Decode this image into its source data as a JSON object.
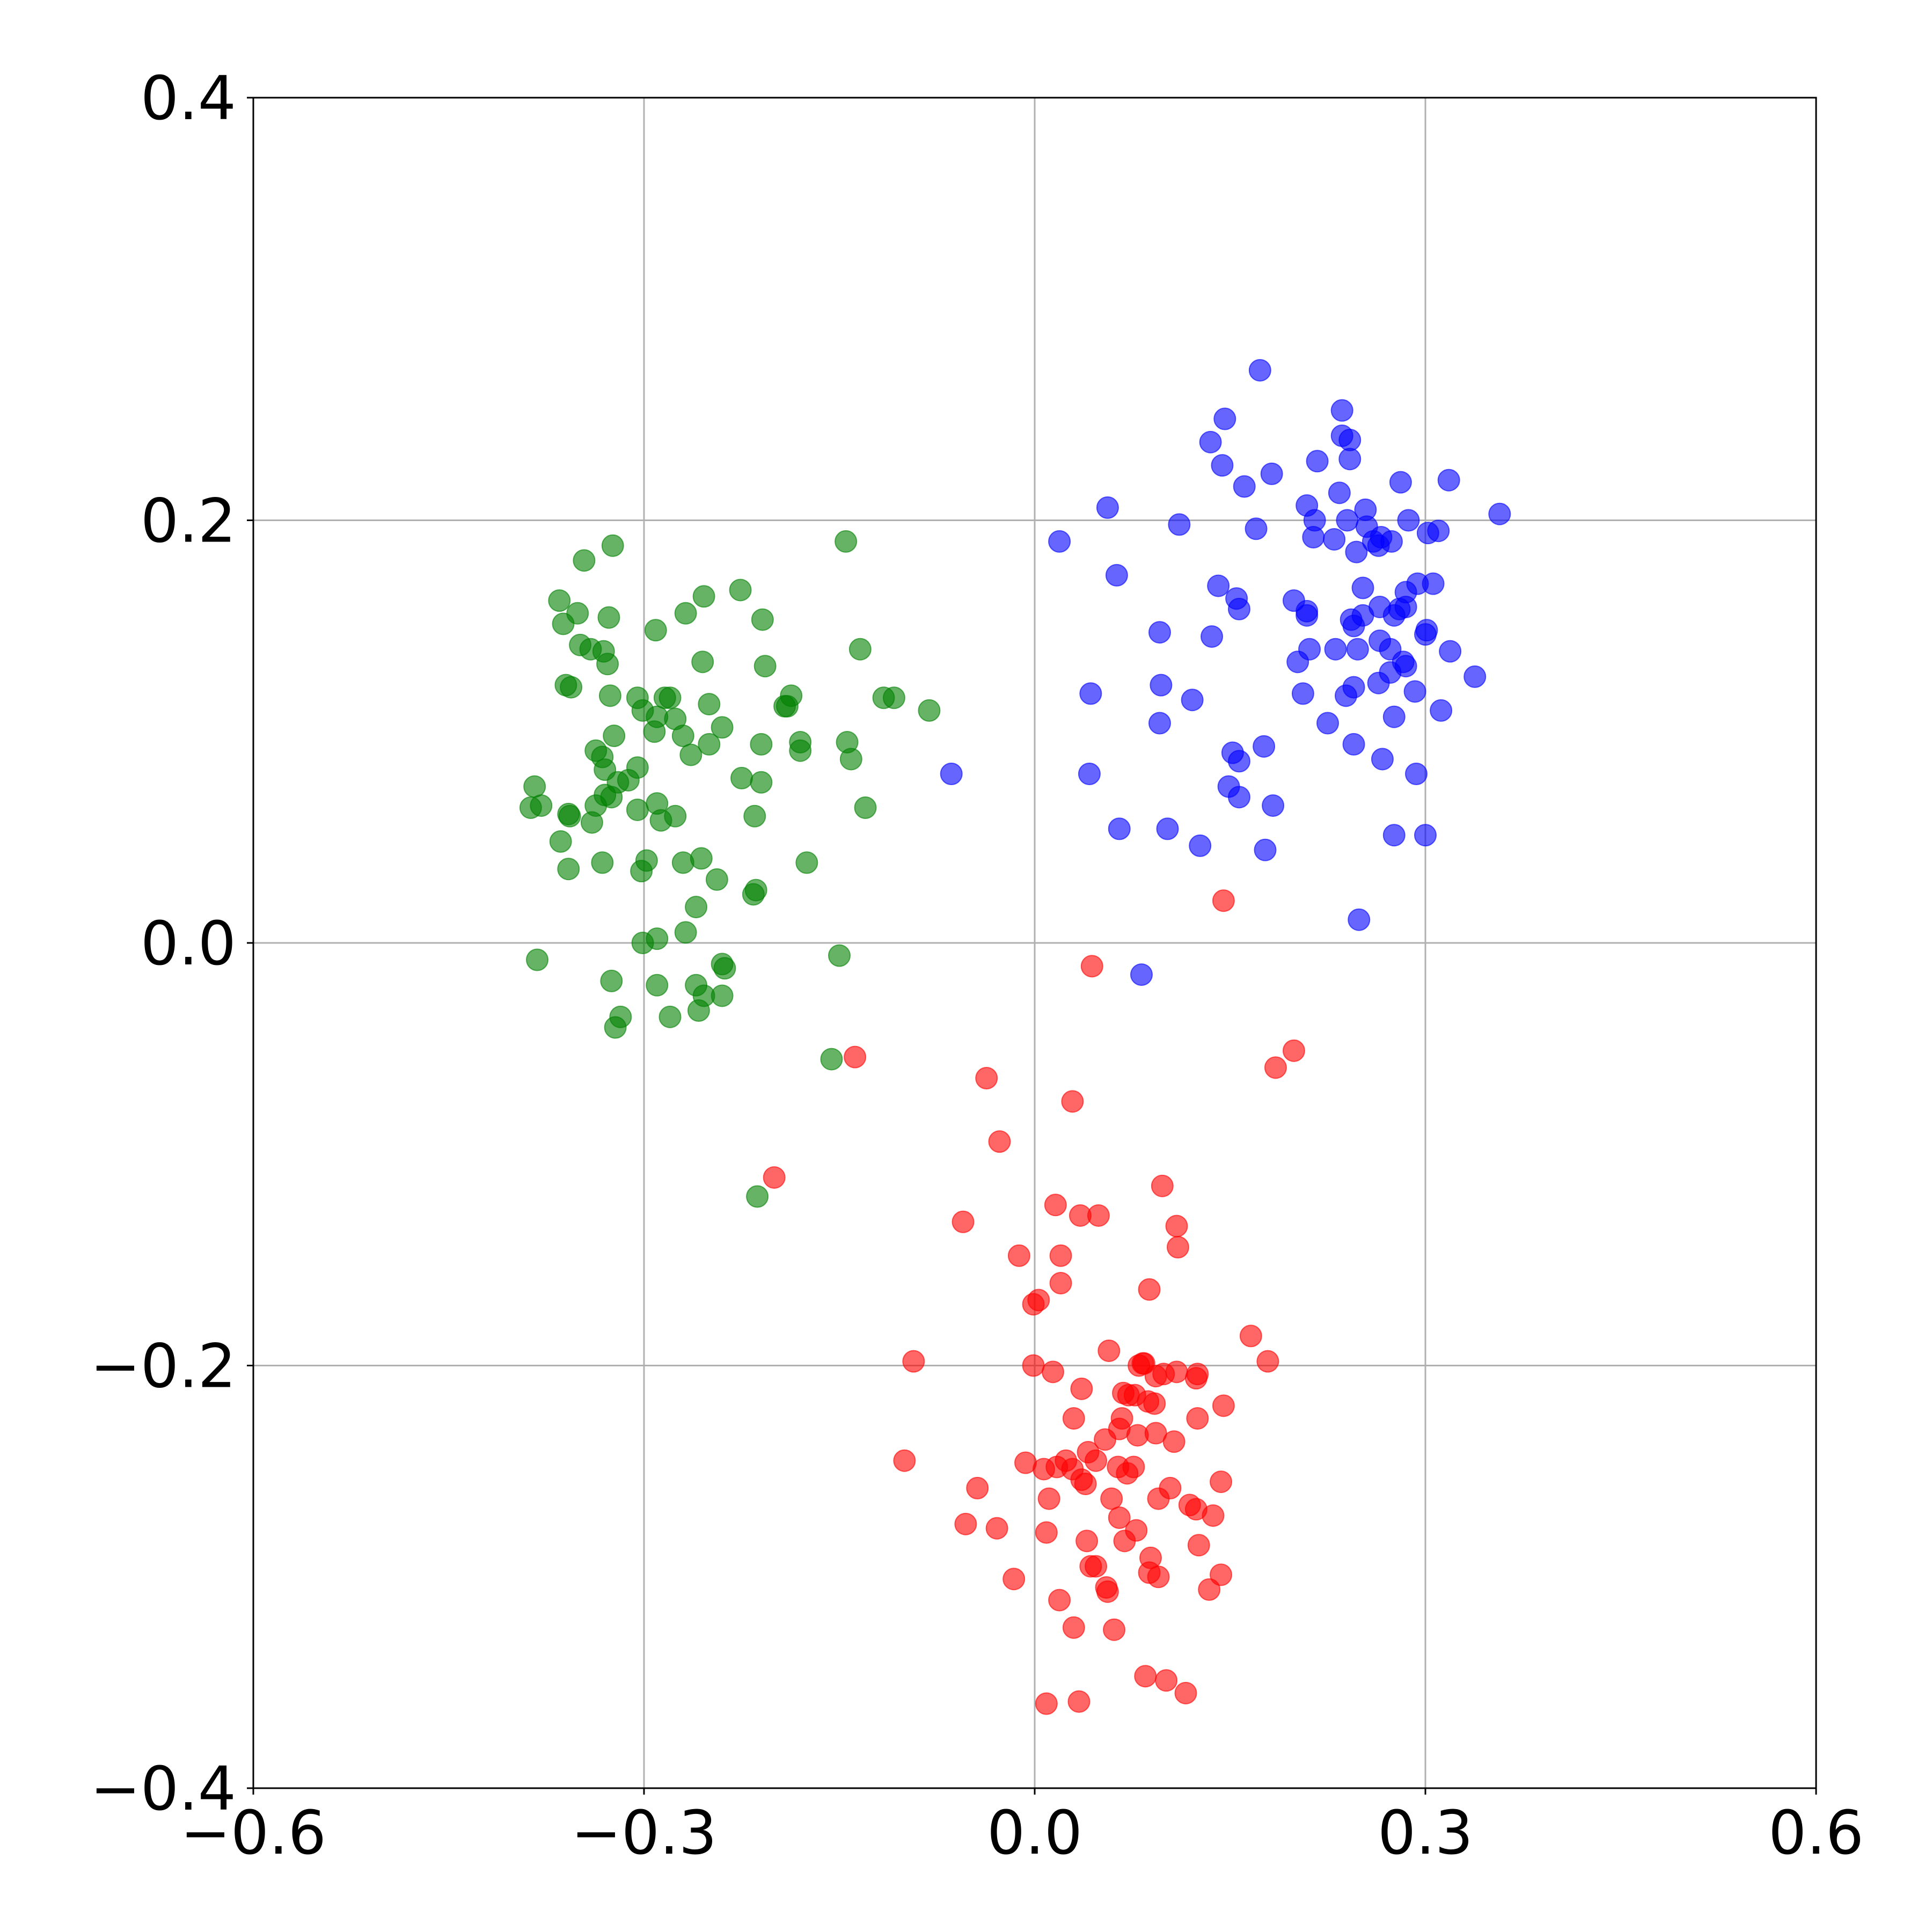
{
  "chart_data": {
    "type": "scatter",
    "title": "",
    "xlabel": "",
    "ylabel": "",
    "xlim": [
      -0.6,
      0.6
    ],
    "ylim": [
      -0.4,
      0.4
    ],
    "grid": true,
    "legend": "none",
    "x_ticks": [
      -0.6,
      -0.3,
      0.0,
      0.3,
      0.6
    ],
    "y_ticks": [
      -0.4,
      -0.2,
      0.0,
      0.2,
      0.4
    ],
    "x_tick_labels": [
      "−0.6",
      "−0.3",
      "0.0",
      "0.3",
      "0.6"
    ],
    "y_tick_labels": [
      "−0.4",
      "−0.2",
      "0.0",
      "0.2",
      "0.4"
    ],
    "series": [
      {
        "color": "#008000",
        "points": [
          [
            -0.324,
            0.188
          ],
          [
            -0.346,
            0.181
          ],
          [
            -0.365,
            0.162
          ],
          [
            -0.362,
            0.151
          ],
          [
            -0.351,
            0.156
          ],
          [
            -0.327,
            0.154
          ],
          [
            -0.349,
            0.141
          ],
          [
            -0.341,
            0.139
          ],
          [
            -0.328,
            0.132
          ],
          [
            -0.331,
            0.138
          ],
          [
            -0.36,
            0.122
          ],
          [
            -0.356,
            0.121
          ],
          [
            -0.326,
            0.117
          ],
          [
            -0.305,
            0.116
          ],
          [
            -0.301,
            0.11
          ],
          [
            -0.29,
            0.107
          ],
          [
            -0.292,
            0.1
          ],
          [
            -0.323,
            0.098
          ],
          [
            -0.337,
            0.091
          ],
          [
            -0.332,
            0.088
          ],
          [
            -0.33,
            0.082
          ],
          [
            -0.305,
            0.083
          ],
          [
            -0.32,
            0.076
          ],
          [
            -0.312,
            0.077
          ],
          [
            -0.33,
            0.07
          ],
          [
            -0.337,
            0.065
          ],
          [
            -0.325,
            0.069
          ],
          [
            -0.305,
            0.063
          ],
          [
            -0.29,
            0.066
          ],
          [
            -0.287,
            0.058
          ],
          [
            -0.276,
            0.06
          ],
          [
            -0.384,
            0.074
          ],
          [
            -0.379,
            0.065
          ],
          [
            -0.387,
            0.064
          ],
          [
            -0.358,
            0.061
          ],
          [
            -0.357,
            0.06
          ],
          [
            -0.34,
            0.057
          ],
          [
            -0.364,
            0.048
          ],
          [
            -0.358,
            0.035
          ],
          [
            -0.332,
            0.038
          ],
          [
            -0.302,
            0.034
          ],
          [
            -0.298,
            0.039
          ],
          [
            -0.27,
            0.038
          ],
          [
            -0.256,
            0.04
          ],
          [
            -0.244,
            0.03
          ],
          [
            -0.29,
            0.002
          ],
          [
            -0.301,
            -0.0
          ],
          [
            -0.268,
            0.005
          ],
          [
            -0.26,
            0.017
          ],
          [
            -0.24,
            -0.01
          ],
          [
            -0.238,
            -0.012
          ],
          [
            -0.382,
            -0.008
          ],
          [
            -0.325,
            -0.018
          ],
          [
            -0.318,
            -0.035
          ],
          [
            -0.322,
            -0.04
          ],
          [
            -0.29,
            -0.02
          ],
          [
            -0.28,
            -0.035
          ],
          [
            -0.26,
            -0.02
          ],
          [
            -0.254,
            -0.025
          ],
          [
            -0.24,
            -0.025
          ],
          [
            -0.258,
            -0.032
          ],
          [
            -0.291,
            0.148
          ],
          [
            -0.268,
            0.156
          ],
          [
            -0.254,
            0.164
          ],
          [
            -0.226,
            0.167
          ],
          [
            -0.209,
            0.153
          ],
          [
            -0.255,
            0.133
          ],
          [
            -0.207,
            0.131
          ],
          [
            -0.28,
            0.116
          ],
          [
            -0.284,
            0.116
          ],
          [
            -0.25,
            0.113
          ],
          [
            -0.276,
            0.106
          ],
          [
            -0.27,
            0.098
          ],
          [
            -0.24,
            0.102
          ],
          [
            -0.264,
            0.089
          ],
          [
            -0.25,
            0.094
          ],
          [
            -0.21,
            0.094
          ],
          [
            -0.192,
            0.112
          ],
          [
            -0.19,
            0.112
          ],
          [
            -0.187,
            0.117
          ],
          [
            -0.18,
            0.091
          ],
          [
            -0.18,
            0.095
          ],
          [
            -0.225,
            0.078
          ],
          [
            -0.21,
            0.076
          ],
          [
            -0.215,
            0.06
          ],
          [
            -0.214,
            0.025
          ],
          [
            -0.216,
            0.023
          ],
          [
            -0.175,
            0.038
          ],
          [
            -0.145,
            0.19
          ],
          [
            -0.134,
            0.139
          ],
          [
            -0.116,
            0.116
          ],
          [
            -0.108,
            0.116
          ],
          [
            -0.081,
            0.11
          ],
          [
            -0.144,
            0.095
          ],
          [
            -0.141,
            0.087
          ],
          [
            -0.13,
            0.064
          ],
          [
            -0.15,
            -0.006
          ],
          [
            -0.156,
            -0.055
          ],
          [
            -0.213,
            -0.12
          ]
        ]
      },
      {
        "color": "#0000ff",
        "points": [
          [
            0.173,
            0.271
          ],
          [
            0.236,
            0.252
          ],
          [
            0.146,
            0.248
          ],
          [
            0.236,
            0.24
          ],
          [
            0.242,
            0.238
          ],
          [
            0.135,
            0.237
          ],
          [
            0.144,
            0.226
          ],
          [
            0.242,
            0.229
          ],
          [
            0.217,
            0.228
          ],
          [
            0.182,
            0.222
          ],
          [
            0.161,
            0.216
          ],
          [
            0.234,
            0.213
          ],
          [
            0.281,
            0.218
          ],
          [
            0.318,
            0.219
          ],
          [
            0.357,
            0.203
          ],
          [
            0.056,
            0.206
          ],
          [
            0.111,
            0.198
          ],
          [
            0.17,
            0.196
          ],
          [
            0.209,
            0.207
          ],
          [
            0.215,
            0.2
          ],
          [
            0.24,
            0.2
          ],
          [
            0.254,
            0.205
          ],
          [
            0.255,
            0.197
          ],
          [
            0.287,
            0.2
          ],
          [
            0.302,
            0.194
          ],
          [
            0.31,
            0.195
          ],
          [
            0.019,
            0.19
          ],
          [
            0.214,
            0.192
          ],
          [
            0.23,
            0.191
          ],
          [
            0.247,
            0.185
          ],
          [
            0.26,
            0.19
          ],
          [
            0.266,
            0.192
          ],
          [
            0.264,
            0.188
          ],
          [
            0.274,
            0.19
          ],
          [
            0.063,
            0.174
          ],
          [
            0.141,
            0.169
          ],
          [
            0.155,
            0.163
          ],
          [
            0.157,
            0.158
          ],
          [
            0.199,
            0.162
          ],
          [
            0.209,
            0.157
          ],
          [
            0.252,
            0.168
          ],
          [
            0.276,
            0.155
          ],
          [
            0.285,
            0.166
          ],
          [
            0.294,
            0.17
          ],
          [
            0.306,
            0.17
          ],
          [
            0.285,
            0.159
          ],
          [
            0.245,
            0.15
          ],
          [
            0.265,
            0.159
          ],
          [
            0.28,
            0.158
          ],
          [
            0.301,
            0.148
          ],
          [
            0.3,
            0.146
          ],
          [
            0.209,
            0.155
          ],
          [
            0.243,
            0.153
          ],
          [
            0.252,
            0.155
          ],
          [
            0.096,
            0.147
          ],
          [
            0.136,
            0.145
          ],
          [
            0.202,
            0.133
          ],
          [
            0.211,
            0.139
          ],
          [
            0.231,
            0.139
          ],
          [
            0.248,
            0.139
          ],
          [
            0.265,
            0.143
          ],
          [
            0.273,
            0.139
          ],
          [
            0.283,
            0.133
          ],
          [
            0.285,
            0.131
          ],
          [
            0.319,
            0.138
          ],
          [
            0.273,
            0.128
          ],
          [
            0.239,
            0.117
          ],
          [
            0.245,
            0.121
          ],
          [
            0.264,
            0.123
          ],
          [
            0.292,
            0.119
          ],
          [
            0.338,
            0.126
          ],
          [
            0.043,
            0.118
          ],
          [
            0.097,
            0.122
          ],
          [
            0.121,
            0.115
          ],
          [
            0.096,
            0.104
          ],
          [
            0.206,
            0.118
          ],
          [
            0.225,
            0.104
          ],
          [
            0.276,
            0.107
          ],
          [
            0.312,
            0.11
          ],
          [
            0.152,
            0.09
          ],
          [
            0.157,
            0.086
          ],
          [
            0.176,
            0.093
          ],
          [
            0.245,
            0.094
          ],
          [
            0.267,
            0.087
          ],
          [
            0.293,
            0.08
          ],
          [
            0.042,
            0.08
          ],
          [
            0.149,
            0.074
          ],
          [
            0.157,
            0.069
          ],
          [
            0.183,
            0.065
          ],
          [
            0.065,
            0.054
          ],
          [
            0.102,
            0.054
          ],
          [
            0.127,
            0.046
          ],
          [
            0.177,
            0.044
          ],
          [
            0.276,
            0.051
          ],
          [
            0.3,
            0.051
          ],
          [
            0.249,
            0.011
          ],
          [
            -0.064,
            0.08
          ],
          [
            0.082,
            -0.015
          ]
        ]
      },
      {
        "color": "#ff0000",
        "points": [
          [
            0.145,
            0.02
          ],
          [
            0.044,
            -0.011
          ],
          [
            0.199,
            -0.051
          ],
          [
            0.185,
            -0.059
          ],
          [
            -0.138,
            -0.054
          ],
          [
            -0.037,
            -0.064
          ],
          [
            0.029,
            -0.075
          ],
          [
            -0.027,
            -0.094
          ],
          [
            -0.2,
            -0.111
          ],
          [
            0.098,
            -0.115
          ],
          [
            0.016,
            -0.124
          ],
          [
            0.035,
            -0.129
          ],
          [
            0.049,
            -0.129
          ],
          [
            -0.055,
            -0.132
          ],
          [
            0.109,
            -0.134
          ],
          [
            0.11,
            -0.144
          ],
          [
            -0.012,
            -0.148
          ],
          [
            0.02,
            -0.148
          ],
          [
            0.02,
            -0.161
          ],
          [
            0.088,
            -0.164
          ],
          [
            -0.001,
            -0.171
          ],
          [
            0.003,
            -0.169
          ],
          [
            0.166,
            -0.186
          ],
          [
            0.057,
            -0.193
          ],
          [
            0.083,
            -0.199
          ],
          [
            0.08,
            -0.2
          ],
          [
            0.084,
            -0.199
          ],
          [
            -0.093,
            -0.198
          ],
          [
            0.179,
            -0.198
          ],
          [
            -0.001,
            -0.2
          ],
          [
            0.014,
            -0.203
          ],
          [
            0.093,
            -0.205
          ],
          [
            0.099,
            -0.204
          ],
          [
            0.109,
            -0.203
          ],
          [
            0.125,
            -0.204
          ],
          [
            0.124,
            -0.206
          ],
          [
            0.036,
            -0.211
          ],
          [
            0.068,
            -0.213
          ],
          [
            0.072,
            -0.214
          ],
          [
            0.077,
            -0.214
          ],
          [
            0.087,
            -0.217
          ],
          [
            0.092,
            -0.218
          ],
          [
            0.145,
            -0.219
          ],
          [
            0.067,
            -0.225
          ],
          [
            0.03,
            -0.225
          ],
          [
            0.125,
            -0.225
          ],
          [
            0.065,
            -0.23
          ],
          [
            0.093,
            -0.232
          ],
          [
            0.079,
            -0.233
          ],
          [
            0.107,
            -0.236
          ],
          [
            0.054,
            -0.235
          ],
          [
            0.041,
            -0.241
          ],
          [
            -0.1,
            -0.245
          ],
          [
            -0.007,
            -0.246
          ],
          [
            0.017,
            -0.248
          ],
          [
            0.024,
            -0.245
          ],
          [
            0.029,
            -0.249
          ],
          [
            0.036,
            -0.254
          ],
          [
            0.039,
            -0.256
          ],
          [
            0.064,
            -0.248
          ],
          [
            0.071,
            -0.251
          ],
          [
            0.076,
            -0.248
          ],
          [
            0.047,
            -0.245
          ],
          [
            0.007,
            -0.249
          ],
          [
            0.143,
            -0.255
          ],
          [
            -0.044,
            -0.258
          ],
          [
            0.104,
            -0.258
          ],
          [
            0.011,
            -0.263
          ],
          [
            0.059,
            -0.263
          ],
          [
            0.095,
            -0.263
          ],
          [
            0.119,
            -0.266
          ],
          [
            0.124,
            -0.268
          ],
          [
            0.137,
            -0.271
          ],
          [
            0.065,
            -0.272
          ],
          [
            0.078,
            -0.278
          ],
          [
            0.009,
            -0.279
          ],
          [
            0.04,
            -0.283
          ],
          [
            0.069,
            -0.283
          ],
          [
            0.126,
            -0.285
          ],
          [
            -0.053,
            -0.275
          ],
          [
            -0.029,
            -0.277
          ],
          [
            0.089,
            -0.291
          ],
          [
            0.043,
            -0.295
          ],
          [
            0.047,
            -0.295
          ],
          [
            0.088,
            -0.298
          ],
          [
            0.095,
            -0.3
          ],
          [
            0.143,
            -0.299
          ],
          [
            -0.016,
            -0.301
          ],
          [
            0.055,
            -0.305
          ],
          [
            0.056,
            -0.307
          ],
          [
            0.134,
            -0.306
          ],
          [
            0.019,
            -0.311
          ],
          [
            0.03,
            -0.324
          ],
          [
            0.061,
            -0.325
          ],
          [
            0.085,
            -0.347
          ],
          [
            0.101,
            -0.349
          ],
          [
            0.116,
            -0.355
          ],
          [
            0.009,
            -0.36
          ],
          [
            0.034,
            -0.359
          ]
        ]
      }
    ]
  }
}
